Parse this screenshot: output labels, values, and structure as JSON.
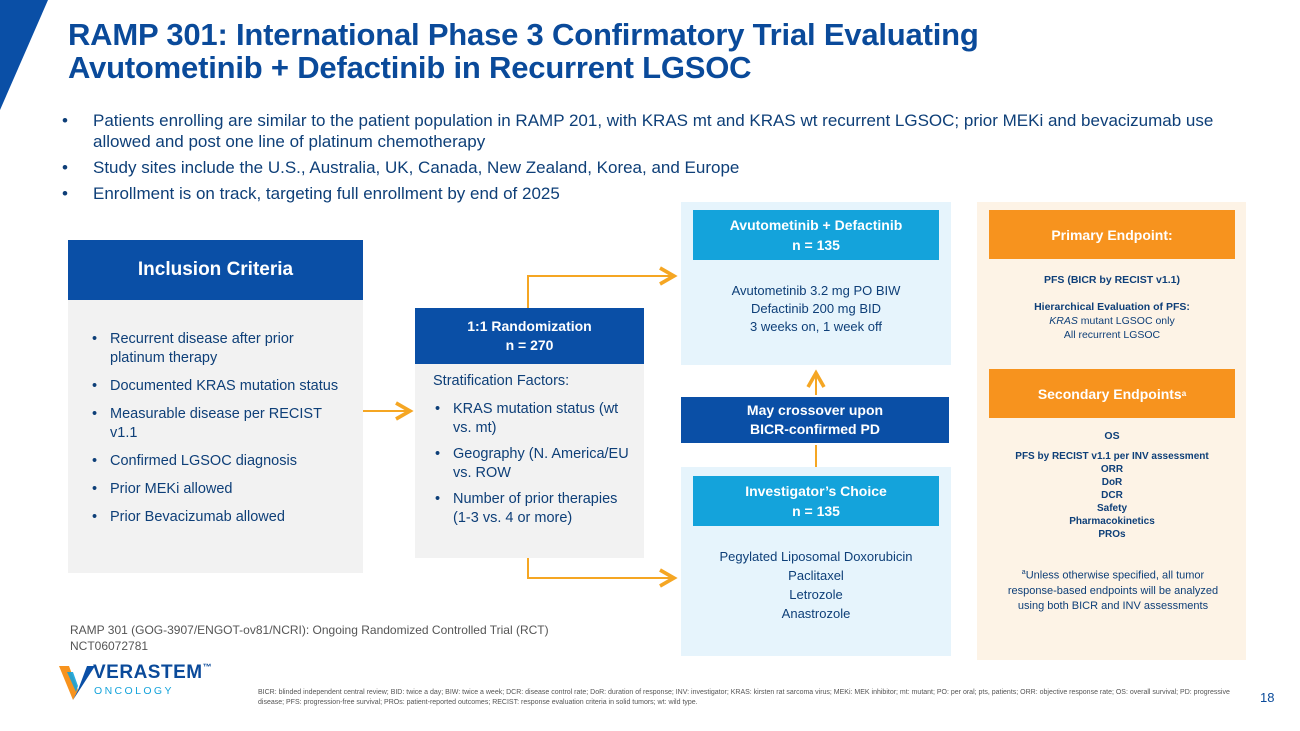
{
  "title": "RAMP 301: International Phase 3 Confirmatory Trial Evaluating Avutometinib + Defactinib in Recurrent LGSOC",
  "bullets": [
    "Patients enrolling are similar to the patient population in RAMP 201, with KRAS mt and KRAS wt recurrent LGSOC; prior MEKi and bevacizumab use allowed and post one line of platinum chemotherapy",
    "Study sites include the U.S.,  Australia, UK, Canada, New Zealand, Korea, and Europe",
    "Enrollment is on track, targeting full enrollment by end of 2025"
  ],
  "inclusion": {
    "header": "Inclusion Criteria",
    "items": [
      "Recurrent disease after prior platinum therapy",
      "Documented KRAS mutation status",
      "Measurable disease per RECIST v1.1",
      "Confirmed LGSOC diagnosis",
      "Prior MEKi allowed",
      "Prior Bevacizumab allowed"
    ]
  },
  "randomization": {
    "header_line1": "1:1 Randomization",
    "header_line2": "n = 270",
    "strat_title": "Stratification Factors:",
    "items": [
      "KRAS mutation status (wt vs. mt)",
      "Geography (N. America/EU vs. ROW",
      "Number of prior therapies (1-3 vs. 4 or more)"
    ]
  },
  "arm1": {
    "header_line1": "Avutometinib + Defactinib",
    "header_line2": "n = 135",
    "lines": [
      "Avutometinib 3.2 mg PO BIW",
      "Defactinib 200 mg BID",
      "3 weeks on, 1 week off"
    ]
  },
  "crossover": {
    "line1": "May crossover upon",
    "line2": "BICR-confirmed PD"
  },
  "arm2": {
    "header_line1": "Investigator’s Choice",
    "header_line2": "n = 135",
    "lines": [
      "Pegylated Liposomal Doxorubicin",
      "Paclitaxel",
      "Letrozole",
      "Anastrozole"
    ]
  },
  "primary": {
    "header": "Primary Endpoint:",
    "pfs": "PFS (BICR by RECIST v1.1)",
    "hier_title": "Hierarchical Evaluation of PFS:",
    "kras_italic": "KRAS",
    "kras_rest": " mutant LGSOC only",
    "all": "All recurrent LGSOC"
  },
  "secondary": {
    "header": "Secondary Endpoints",
    "sup": "a",
    "items": [
      "OS",
      "PFS by RECIST v1.1 per INV assessment",
      "ORR",
      "DoR",
      "DCR",
      "Safety",
      "Pharmacokinetics",
      "PROs"
    ],
    "footnote_sup": "a",
    "footnote": "Unless otherwise specified, all tumor response-based endpoints will be analyzed using both BICR and INV assessments"
  },
  "ramp_note": "RAMP 301 (GOG-3907/ENGOT-ov81/NCRI): Ongoing Randomized Controlled Trial (RCT) NCT06072781",
  "abbreviations": "BICR: blinded independent central review; BID: twice a day; BIW: twice a week; DCR: disease control rate; DoR: duration of response; INV: investigator; KRAS: kirsten rat sarcoma virus; MEKi: MEK inhibitor; mt: mutant; PO: per oral; pts, patients; ORR: objective response rate; OS: overall survival; PD: progressive disease; PFS: progression-free survival; PROs: patient-reported outcomes; RECIST: response evaluation criteria in solid tumors; wt: wild type.",
  "logo": {
    "word": "VERASTEM",
    "tm": "™",
    "sub": "ONCOLOGY"
  },
  "page_number": "18",
  "colors": {
    "navy": "#0a4fa6",
    "cyan": "#14a3db",
    "orange": "#f7931e",
    "arrow": "#f5a623"
  }
}
